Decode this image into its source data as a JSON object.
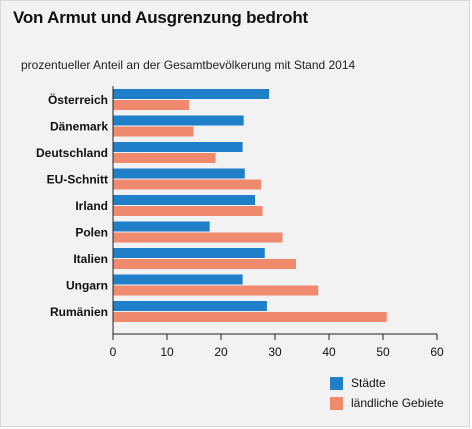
{
  "header": {
    "title": "Von Armut und Ausgrenzung bedroht",
    "subtitle": "prozentueller Anteil an der Gesamtbevölkerung mit Stand 2014"
  },
  "colors": {
    "staedte": "#1f7fc9",
    "laendlich": "#ef8a6f",
    "axis": "#222222",
    "grid": "#ffffff"
  },
  "chart_data": {
    "type": "bar",
    "orientation": "horizontal",
    "title": "Von Armut und Ausgrenzung bedroht",
    "subtitle": "prozentueller Anteil an der Gesamtbevölkerung mit Stand 2014",
    "categories": [
      "Österreich",
      "Dänemark",
      "Deutschland",
      "EU-Schnitt",
      "Irland",
      "Polen",
      "Italien",
      "Ungarn",
      "Rumänien"
    ],
    "series": [
      {
        "name": "Städte",
        "values": [
          28.9,
          24.2,
          24.0,
          24.4,
          26.3,
          17.9,
          28.1,
          24.0,
          28.5
        ]
      },
      {
        "name": "ländliche Gebiete",
        "values": [
          14.1,
          14.9,
          19.0,
          27.4,
          27.7,
          31.4,
          33.9,
          38.0,
          50.7
        ]
      }
    ],
    "xlim": [
      0,
      60
    ],
    "xticks": [
      0,
      10,
      20,
      30,
      40,
      50,
      60
    ],
    "xlabel": "",
    "ylabel": "",
    "grid": false,
    "legend_position": "bottom-right"
  }
}
